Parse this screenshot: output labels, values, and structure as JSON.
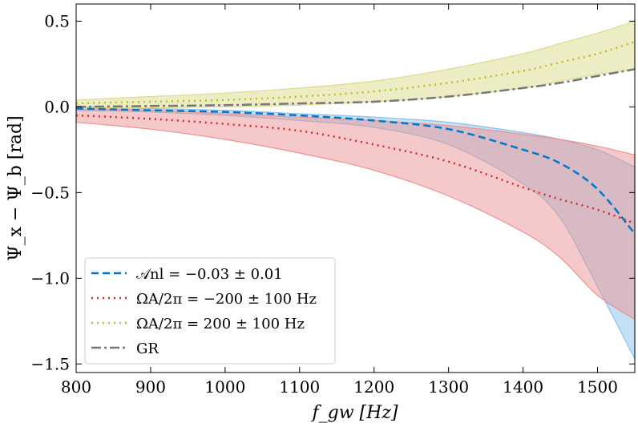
{
  "chart_data": {
    "type": "line",
    "xlabel": "f_gw [Hz]",
    "ylabel": "Ψ_x − Ψ_b [rad]",
    "xlim": [
      800,
      1550
    ],
    "ylim": [
      -1.55,
      0.6
    ],
    "xticks": [
      800,
      900,
      1000,
      1100,
      1200,
      1300,
      1400,
      1500
    ],
    "xtick_labels": [
      "800",
      "900",
      "1000",
      "1100",
      "1200",
      "1300",
      "1400",
      "1500"
    ],
    "yticks": [
      0.5,
      0.0,
      -0.5,
      -1.0,
      -1.5
    ],
    "ytick_labels": [
      "0.5",
      "0.0",
      "−0.5",
      "−1.0",
      "−1.5"
    ],
    "grid": false,
    "legend_placement": "lower-left",
    "x": [
      800,
      900,
      1000,
      1100,
      1200,
      1300,
      1400,
      1450,
      1500,
      1550
    ],
    "series": [
      {
        "name": "𝒜nl = −0.03 ± 0.01",
        "color": "#0077cc",
        "fill": "#87c3ea",
        "style": "dashed",
        "values": [
          -0.01,
          -0.02,
          -0.03,
          -0.05,
          -0.08,
          -0.13,
          -0.25,
          -0.33,
          -0.48,
          -0.74
        ],
        "upper": [
          0.0,
          -0.01,
          -0.02,
          -0.04,
          -0.06,
          -0.09,
          -0.15,
          -0.19,
          -0.25,
          -0.35
        ],
        "lower": [
          -0.02,
          -0.03,
          -0.05,
          -0.08,
          -0.12,
          -0.22,
          -0.45,
          -0.65,
          -1.05,
          -1.47
        ]
      },
      {
        "name": "ΩA/2π = −200 ± 100 Hz",
        "color": "#d62728",
        "fill": "#ec9393",
        "style": "dotted",
        "values": [
          -0.05,
          -0.07,
          -0.1,
          -0.14,
          -0.22,
          -0.32,
          -0.47,
          -0.54,
          -0.6,
          -0.68
        ],
        "upper": [
          -0.01,
          -0.02,
          -0.04,
          -0.06,
          -0.08,
          -0.11,
          -0.16,
          -0.19,
          -0.23,
          -0.28
        ],
        "lower": [
          -0.09,
          -0.13,
          -0.19,
          -0.27,
          -0.37,
          -0.52,
          -0.73,
          -0.88,
          -1.1,
          -1.24
        ]
      },
      {
        "name": "ΩA/2π = 200 ± 100 Hz",
        "color": "#bcbd22",
        "fill": "#dcdc8c",
        "style": "dotted",
        "values": [
          0.02,
          0.03,
          0.04,
          0.06,
          0.09,
          0.14,
          0.21,
          0.26,
          0.31,
          0.38
        ],
        "upper": [
          0.04,
          0.06,
          0.08,
          0.11,
          0.15,
          0.22,
          0.31,
          0.37,
          0.43,
          0.5
        ],
        "lower": [
          -0.01,
          -0.005,
          0.0,
          0.01,
          0.03,
          0.06,
          0.11,
          0.15,
          0.19,
          0.22
        ]
      },
      {
        "name": "GR",
        "color": "#777777",
        "style": "dashdot",
        "values": [
          0.0,
          0.005,
          0.01,
          0.02,
          0.03,
          0.06,
          0.11,
          0.14,
          0.18,
          0.22
        ]
      }
    ]
  }
}
